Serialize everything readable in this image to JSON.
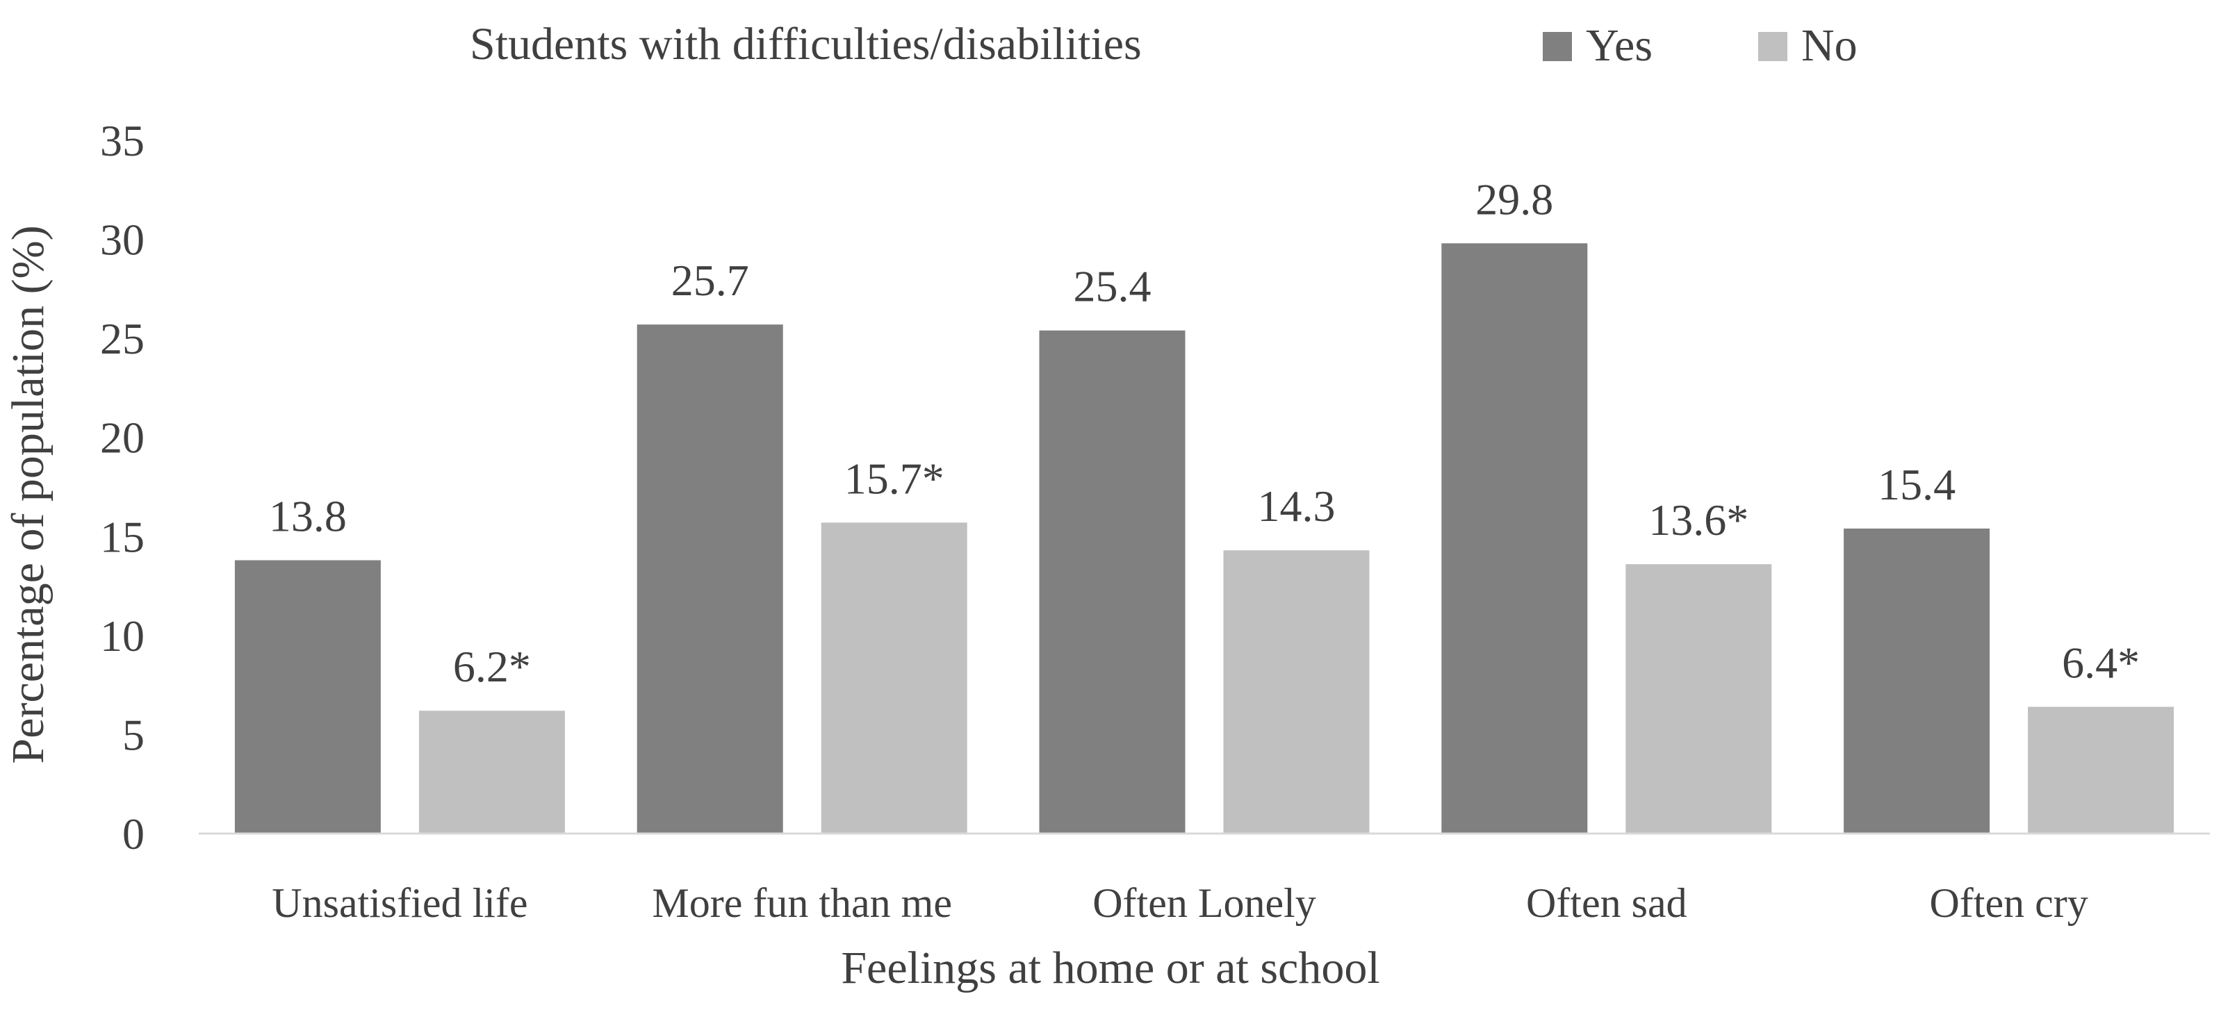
{
  "chart_data": {
    "type": "bar",
    "title": "",
    "legend_title": "Students with difficulties/disabilities",
    "legend_position": "top",
    "categories": [
      "Unsatisfied life",
      "More fun than me",
      "Often Lonely",
      "Often sad",
      "Often cry"
    ],
    "series": [
      {
        "name": "Yes",
        "color": "#808080",
        "values": [
          13.8,
          25.7,
          25.4,
          29.8,
          15.4
        ],
        "labels": [
          "13.8",
          "25.7",
          "25.4",
          "29.8",
          "15.4"
        ]
      },
      {
        "name": "No",
        "color": "#c0c0c0",
        "values": [
          6.2,
          15.7,
          14.3,
          13.6,
          6.4
        ],
        "labels": [
          "6.2*",
          "15.7*",
          "14.3",
          "13.6*",
          "6.4*"
        ]
      }
    ],
    "xlabel": "Feelings at home or at school",
    "ylabel": "Percentage of population (%)",
    "ylim": [
      0,
      35
    ],
    "yticks": [
      0,
      5,
      10,
      15,
      20,
      25,
      30,
      35
    ],
    "grid": false
  }
}
